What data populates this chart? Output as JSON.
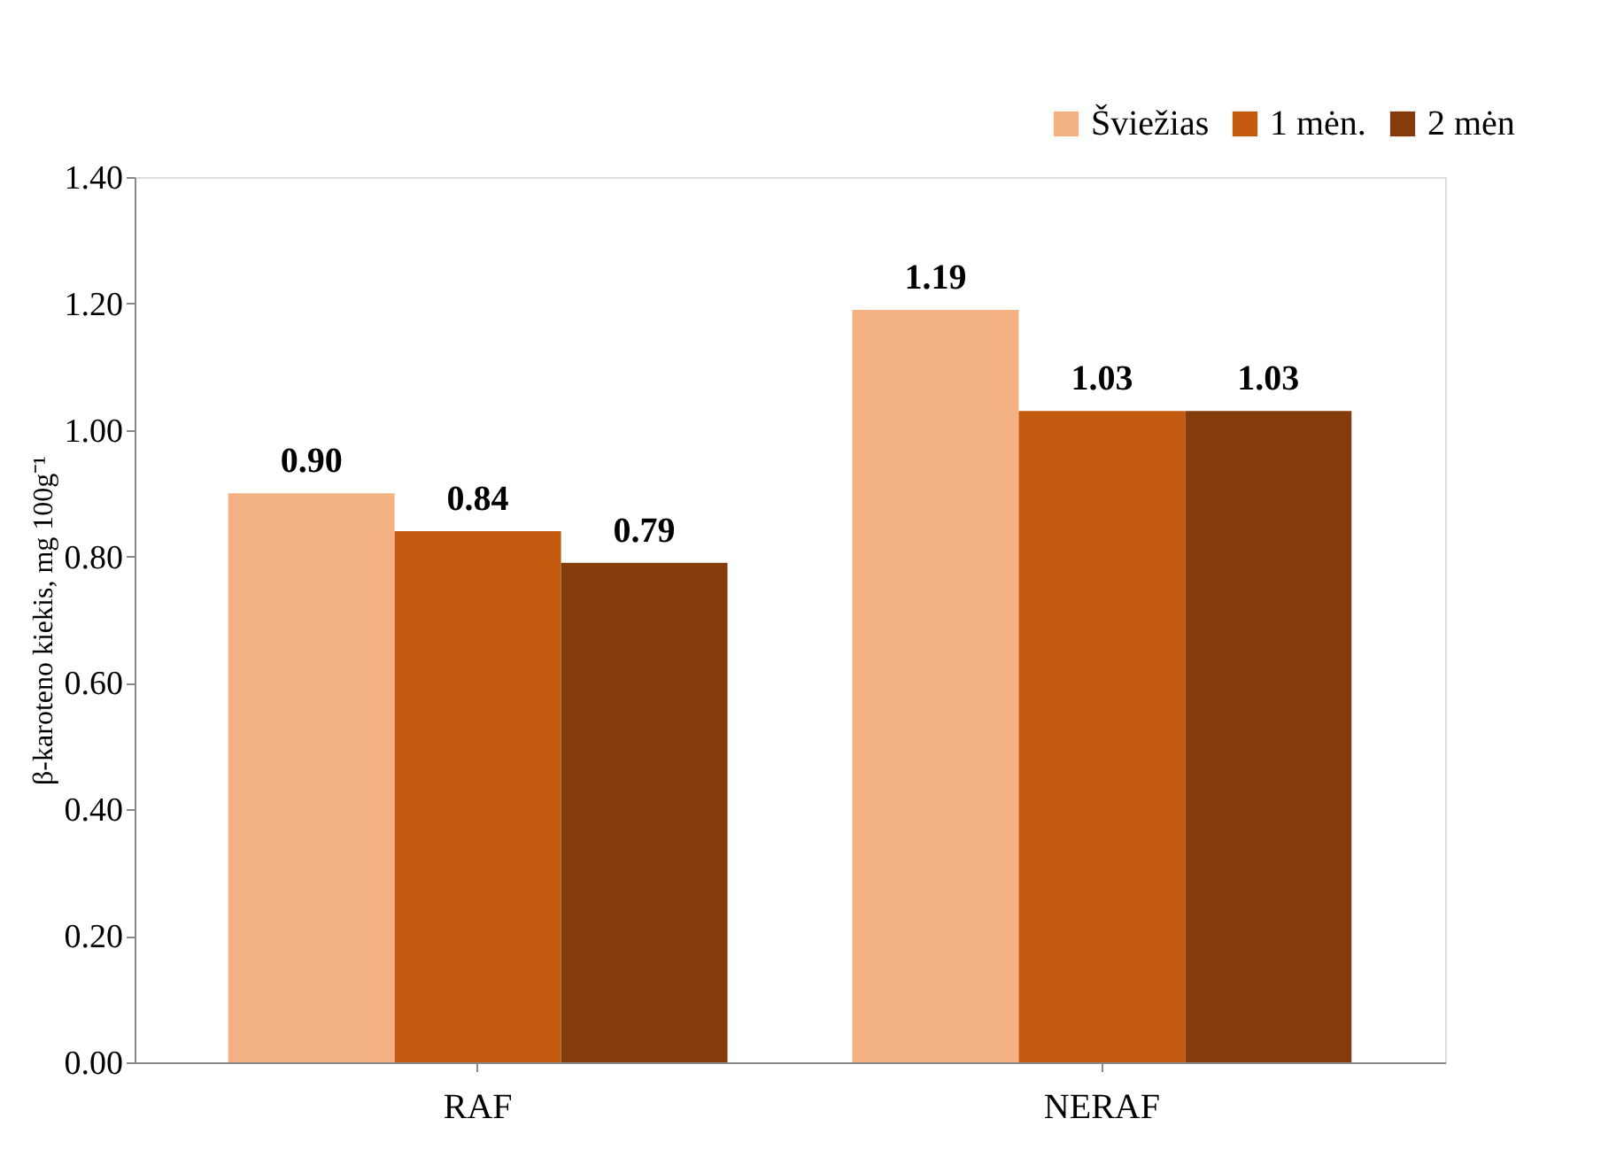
{
  "chart_data": {
    "type": "bar",
    "ylabel": "β-karoteno kiekis, mg 100g⁻¹",
    "categories": [
      "RAF",
      "NERAF"
    ],
    "series": [
      {
        "name": "Šviežias",
        "color": "#f4b183",
        "values": [
          0.9,
          1.19
        ],
        "value_labels": [
          "0.90",
          "1.19"
        ]
      },
      {
        "name": "1 mėn.",
        "color": "#c55a11",
        "values": [
          0.84,
          1.03
        ],
        "value_labels": [
          "0.84",
          "1.03"
        ]
      },
      {
        "name": "2 mėn",
        "color": "#843c0c",
        "values": [
          0.79,
          1.03
        ],
        "value_labels": [
          "0.79",
          "1.03"
        ]
      }
    ],
    "ylim": [
      0,
      1.4
    ],
    "yticks": [
      {
        "value": 0,
        "label": "0.00"
      },
      {
        "value": 0.2,
        "label": "0.20"
      },
      {
        "value": 0.4,
        "label": "0.40"
      },
      {
        "value": 0.6,
        "label": "0.60"
      },
      {
        "value": 0.8,
        "label": "0.80"
      },
      {
        "value": 1.0,
        "label": "1.00"
      },
      {
        "value": 1.2,
        "label": "1.20"
      },
      {
        "value": 1.4,
        "label": "1.40"
      }
    ],
    "grid": false,
    "legend": "top right"
  }
}
